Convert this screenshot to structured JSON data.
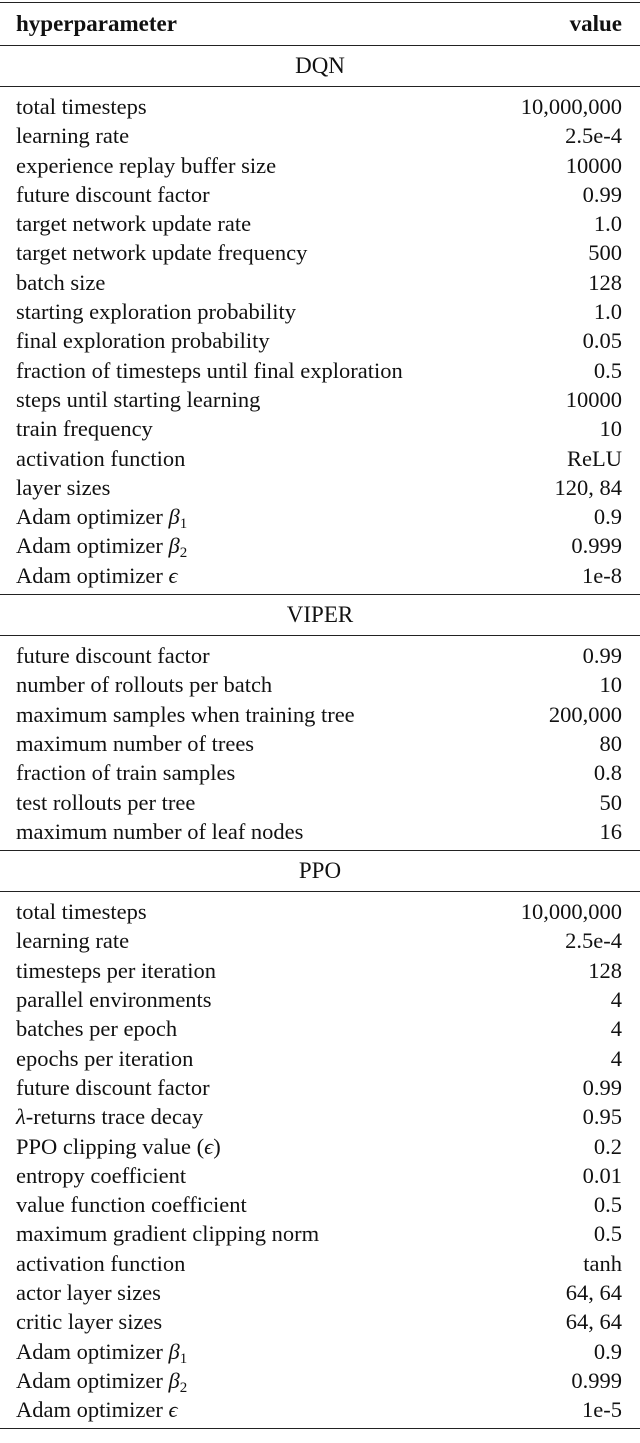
{
  "header": {
    "param": "hyperparameter",
    "value": "value"
  },
  "sections": [
    {
      "title": "DQN",
      "rows": [
        {
          "label": "total timesteps",
          "value": "10,000,000"
        },
        {
          "label": "learning rate",
          "value": "2.5e-4"
        },
        {
          "label": "experience replay buffer size",
          "value": "10000"
        },
        {
          "label": "future discount factor",
          "value": "0.99"
        },
        {
          "label": "target network update rate",
          "value": "1.0"
        },
        {
          "label": "target network update frequency",
          "value": "500"
        },
        {
          "label": "batch size",
          "value": "128"
        },
        {
          "label": "starting exploration probability",
          "value": "1.0"
        },
        {
          "label": "final exploration probability",
          "value": "0.05"
        },
        {
          "label": "fraction of timesteps until final exploration",
          "value": "0.5"
        },
        {
          "label": "steps until starting learning",
          "value": "10000"
        },
        {
          "label": "train frequency",
          "value": "10"
        },
        {
          "label": "activation function",
          "value": "ReLU"
        },
        {
          "label": "layer sizes",
          "value": "120, 84"
        },
        {
          "label": "Adam optimizer ",
          "sym": "β",
          "sub": "1",
          "value": "0.9"
        },
        {
          "label": "Adam optimizer ",
          "sym": "β",
          "sub": "2",
          "value": "0.999"
        },
        {
          "label": "Adam optimizer ",
          "sym": "ϵ",
          "value": "1e-8"
        }
      ]
    },
    {
      "title": "VIPER",
      "rows": [
        {
          "label": "future discount factor",
          "value": "0.99"
        },
        {
          "label": "number of rollouts per batch",
          "value": "10"
        },
        {
          "label": "maximum samples when training tree",
          "value": "200,000"
        },
        {
          "label": "maximum number of trees",
          "value": "80"
        },
        {
          "label": "fraction of train samples",
          "value": "0.8"
        },
        {
          "label": "test rollouts per tree",
          "value": "50"
        },
        {
          "label": "maximum number of leaf nodes",
          "value": "16"
        }
      ]
    },
    {
      "title": "PPO",
      "rows": [
        {
          "label": "total timesteps",
          "value": "10,000,000"
        },
        {
          "label": "learning rate",
          "value": "2.5e-4"
        },
        {
          "label": "timesteps per iteration",
          "value": "128"
        },
        {
          "label": "parallel environments",
          "value": "4"
        },
        {
          "label": "batches per epoch",
          "value": "4"
        },
        {
          "label": "epochs per iteration",
          "value": "4"
        },
        {
          "label": "future discount factor",
          "value": "0.99"
        },
        {
          "prefix_sym": "λ",
          "label": "-returns trace decay",
          "value": "0.95"
        },
        {
          "label": "PPO clipping value (",
          "sym": "ϵ",
          "suffix": ")",
          "value": "0.2"
        },
        {
          "label": "entropy coefficient",
          "value": "0.01"
        },
        {
          "label": "value function coefficient",
          "value": "0.5"
        },
        {
          "label": "maximum gradient clipping norm",
          "value": "0.5"
        },
        {
          "label": "activation function",
          "value": "tanh"
        },
        {
          "label": "actor layer sizes",
          "value": "64, 64"
        },
        {
          "label": "critic layer sizes",
          "value": "64, 64"
        },
        {
          "label": "Adam optimizer ",
          "sym": "β",
          "sub": "1",
          "value": "0.9"
        },
        {
          "label": "Adam optimizer ",
          "sym": "β",
          "sub": "2",
          "value": "0.999"
        },
        {
          "label": "Adam optimizer ",
          "sym": "ϵ",
          "value": "1e-5"
        }
      ]
    }
  ]
}
